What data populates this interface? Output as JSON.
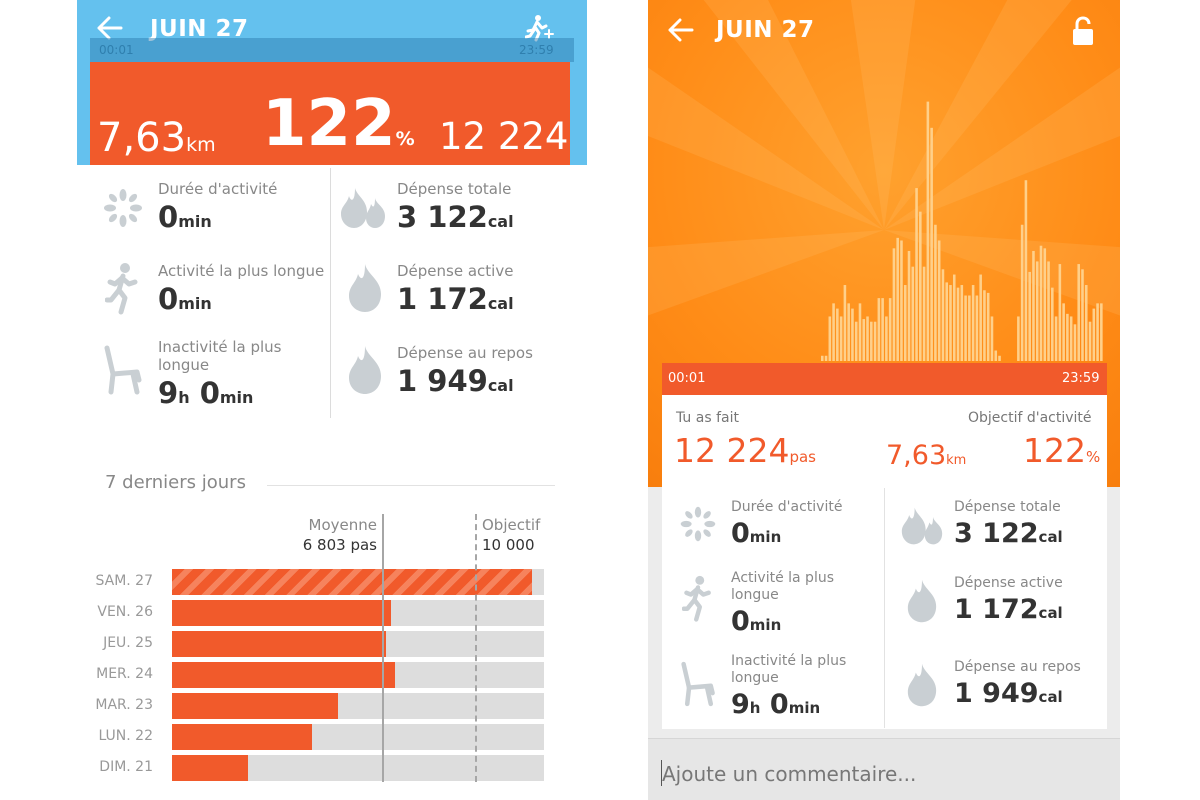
{
  "left": {
    "header": {
      "back_icon": "back-arrow-icon",
      "title": "JUIN 27",
      "action_icon": "running-man-add-icon"
    },
    "timeline": {
      "start": "00:01",
      "end": "23:59"
    },
    "summary": {
      "distance_value": "7,63",
      "distance_unit": "km",
      "goal_percent": "122",
      "percent_unit": "%",
      "steps": "12 224"
    },
    "stats_left": [
      {
        "icon": "burst-icon",
        "label": "Durée d'activité",
        "value": "0",
        "unit": "min"
      },
      {
        "icon": "runner-icon",
        "label": "Activité la plus longue",
        "value": "0",
        "unit": "min"
      },
      {
        "icon": "chair-icon",
        "label": "Inactivité la plus longue",
        "value_h": "9",
        "unit_h": "h",
        "value_m": "0",
        "unit_m": "min"
      }
    ],
    "stats_right": [
      {
        "icon": "double-flame-icon",
        "label": "Dépense totale",
        "value": "3 122",
        "unit": "cal"
      },
      {
        "icon": "flame-icon",
        "label": "Dépense active",
        "value": "1 172",
        "unit": "cal"
      },
      {
        "icon": "flame-icon",
        "label": "Dépense au repos",
        "value": "1 949",
        "unit": "cal"
      }
    ],
    "week": {
      "title": "7 derniers jours",
      "average_label": "Moyenne",
      "average_value": "6 803 pas",
      "goal_label": "Objectif",
      "goal_value": "10 000",
      "days": [
        {
          "label": "SAM. 27",
          "fraction": 0.967,
          "today": true
        },
        {
          "label": "VEN. 26",
          "fraction": 0.59
        },
        {
          "label": "JEU. 25",
          "fraction": 0.575
        },
        {
          "label": "MER. 24",
          "fraction": 0.6
        },
        {
          "label": "MAR. 23",
          "fraction": 0.445
        },
        {
          "label": "LUN. 22",
          "fraction": 0.375
        },
        {
          "label": "DIM. 21",
          "fraction": 0.205
        }
      ]
    }
  },
  "right": {
    "header": {
      "back_icon": "back-arrow-icon",
      "title": "JUIN 27",
      "lock_icon": "unlocked-padlock-icon"
    },
    "timeline": {
      "start": "00:01",
      "end": "23:59"
    },
    "activity_chart": {
      "type": "bar",
      "bar_color": "#ffd08a",
      "values": [
        0,
        0,
        0,
        0,
        0,
        0,
        0,
        0,
        0,
        0,
        0,
        0,
        0,
        0,
        0,
        0,
        0,
        0,
        0,
        0,
        0,
        0,
        0,
        0,
        0,
        0,
        0,
        0,
        0,
        0,
        0,
        0,
        0,
        0,
        0,
        0,
        0,
        0,
        0,
        0,
        0,
        0,
        0.02,
        0.02,
        0.17,
        0.22,
        0.2,
        0.17,
        0.29,
        0.22,
        0.2,
        0.15,
        0.22,
        0.16,
        0.17,
        0.15,
        0.15,
        0.24,
        0.24,
        0.17,
        0.24,
        0.43,
        0.47,
        0.46,
        0.29,
        0.42,
        0.36,
        0.66,
        0.57,
        0.36,
        0.99,
        0.89,
        0.52,
        0.46,
        0.35,
        0.3,
        0.29,
        0.33,
        0.28,
        0.29,
        0.25,
        0.25,
        0.29,
        0.25,
        0.33,
        0.27,
        0.26,
        0.17,
        0.04,
        0.02,
        0,
        0,
        0,
        0,
        0.17,
        0.52,
        0.69,
        0.34,
        0.42,
        0.38,
        0.44,
        0.43,
        0.38,
        0.28,
        0.17,
        0.37,
        0.22,
        0.18,
        0.17,
        0.14,
        0.37,
        0.35,
        0.29,
        0.15,
        0.2,
        0.22,
        0.22,
        0.0
      ]
    },
    "summary": {
      "did_label": "Tu as fait",
      "goal_label": "Objectif d'activité",
      "steps_value": "12 224",
      "steps_unit": "pas",
      "distance_value": "7,63",
      "distance_unit": "km",
      "percent_value": "122",
      "percent_unit": "%"
    },
    "stats_left": [
      {
        "icon": "burst-icon",
        "label": "Durée d'activité",
        "value": "0",
        "unit": "min"
      },
      {
        "icon": "runner-icon",
        "label_line1": "Activité la plus",
        "label_line2": "longue",
        "value": "0",
        "unit": "min"
      },
      {
        "icon": "chair-icon",
        "label_line1": "Inactivité la plus",
        "label_line2": "longue",
        "value_h": "9",
        "unit_h": "h",
        "value_m": "0",
        "unit_m": "min"
      }
    ],
    "stats_right": [
      {
        "icon": "double-flame-icon",
        "label": "Dépense totale",
        "value": "3 122",
        "unit": "cal"
      },
      {
        "icon": "flame-icon",
        "label": "Dépense active",
        "value": "1 172",
        "unit": "cal"
      },
      {
        "icon": "flame-icon",
        "label": "Dépense au repos",
        "value": "1 949",
        "unit": "cal"
      }
    ],
    "comment": {
      "placeholder": "Ajoute un commentaire..."
    }
  }
}
